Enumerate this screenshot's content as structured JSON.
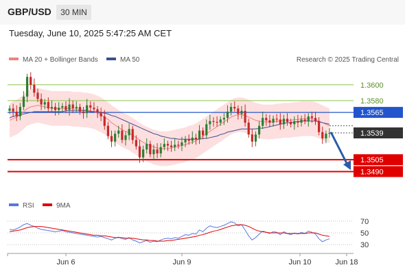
{
  "header": {
    "symbol": "GBP/USD",
    "interval": "30 MIN"
  },
  "datetime": "Tuesday, June 10, 2025 5:47:25 AM CET",
  "legend": {
    "bb_label": "MA 20 + Bollinger Bands",
    "ma50_label": "MA 50",
    "credit": "Research © 2025 Trading Central",
    "rsi_label": "RSI",
    "ma9_label": "9MA"
  },
  "colors": {
    "bb_band": "#fdd9d9",
    "ma20": "#f08080",
    "ma50": "#3a4f91",
    "resistance": "#8bc34a",
    "pivot": "#2255cc",
    "support": "#e00000",
    "up": "#2e7d32",
    "down": "#c62828",
    "rsi": "#5577dd",
    "arrow": "#2a5ba8"
  },
  "chart_data": [
    {
      "type": "candlestick",
      "title": "GBP/USD",
      "ylim": [
        1.346,
        1.3625
      ],
      "x_ticks": [
        "Jun 6",
        "Jun 9",
        "Jun 10",
        "Jun 18"
      ],
      "last_price": 1.3539,
      "levels": [
        {
          "value": 1.36,
          "label": "1.3600",
          "kind": "resistance"
        },
        {
          "value": 1.358,
          "label": "1.3580",
          "kind": "resistance"
        },
        {
          "value": 1.3565,
          "label": "1.3565",
          "kind": "pivot"
        },
        {
          "value": 1.3539,
          "label": "1.3539",
          "kind": "last"
        },
        {
          "value": 1.3505,
          "label": "1.3505",
          "kind": "support"
        },
        {
          "value": 1.349,
          "label": "1.3490",
          "kind": "support"
        }
      ],
      "forecast": {
        "from": 1.354,
        "to": 1.3492,
        "direction": "down"
      },
      "close_series": [
        1.357,
        1.3566,
        1.356,
        1.3572,
        1.3585,
        1.361,
        1.36,
        1.359,
        1.3582,
        1.3575,
        1.3578,
        1.357,
        1.3572,
        1.3568,
        1.3571,
        1.3573,
        1.3568,
        1.3575,
        1.357,
        1.3572,
        1.3566,
        1.3564,
        1.3574,
        1.3571,
        1.3569,
        1.3565,
        1.356,
        1.3548,
        1.3535,
        1.3528,
        1.3538,
        1.3542,
        1.353,
        1.3536,
        1.3544,
        1.353,
        1.3522,
        1.3508,
        1.3518,
        1.3525,
        1.3512,
        1.3518,
        1.3513,
        1.3521,
        1.3525,
        1.3523,
        1.3521,
        1.3524,
        1.3523,
        1.3527,
        1.3531,
        1.3529,
        1.3533,
        1.3531,
        1.3542,
        1.3536,
        1.355,
        1.3554,
        1.3553,
        1.3552,
        1.3556,
        1.3558,
        1.3566,
        1.3572,
        1.357,
        1.3563,
        1.3567,
        1.3552,
        1.3537,
        1.3528,
        1.3537,
        1.3548,
        1.3558,
        1.3555,
        1.3552,
        1.3557,
        1.3556,
        1.355,
        1.3557,
        1.3553,
        1.355,
        1.3554,
        1.3552,
        1.3556,
        1.3554,
        1.356,
        1.3558,
        1.3554,
        1.354,
        1.3532,
        1.3538,
        1.3539
      ],
      "ma20_series": [
        1.3555,
        1.3557,
        1.3559,
        1.3562,
        1.3566,
        1.357,
        1.3572,
        1.3573,
        1.3574,
        1.3573,
        1.3572,
        1.3571,
        1.357,
        1.357,
        1.357,
        1.357,
        1.357,
        1.357,
        1.3569,
        1.3569,
        1.3569,
        1.3568,
        1.3568,
        1.3567,
        1.3566,
        1.3564,
        1.3562,
        1.3559,
        1.3556,
        1.3552,
        1.3549,
        1.3546,
        1.3543,
        1.3541,
        1.3539,
        1.3536,
        1.3533,
        1.353,
        1.3527,
        1.3525,
        1.3523,
        1.3521,
        1.352,
        1.3519,
        1.3519,
        1.3519,
        1.352,
        1.3521,
        1.3522,
        1.3523,
        1.3524,
        1.3526,
        1.3527,
        1.3529,
        1.3532,
        1.3535,
        1.3538,
        1.3541,
        1.3544,
        1.3547,
        1.355,
        1.3553,
        1.3556,
        1.3559,
        1.3561,
        1.3562,
        1.3562,
        1.3561,
        1.3559,
        1.3557,
        1.3555,
        1.3554,
        1.3553,
        1.3553,
        1.3553,
        1.3553,
        1.3554,
        1.3554,
        1.3555,
        1.3555,
        1.3555,
        1.3556,
        1.3556,
        1.3557,
        1.3557,
        1.3557,
        1.3557,
        1.3556,
        1.3554,
        1.3552,
        1.355,
        1.3548
      ],
      "ma50_series": [
        1.3558,
        1.356,
        1.3561,
        1.3562,
        1.3563,
        1.3564,
        1.3565,
        1.3566,
        1.3566,
        1.3566,
        1.3566,
        1.3566,
        1.3566,
        1.3566,
        1.3566,
        1.3566,
        1.3567,
        1.3567,
        1.3567,
        1.3567,
        1.3567,
        1.3567,
        1.3567,
        1.3566,
        1.3566,
        1.3566,
        1.3565,
        1.3564,
        1.3563,
        1.3561,
        1.356,
        1.3558,
        1.3556,
        1.3554,
        1.3552,
        1.355,
        1.3548,
        1.3546,
        1.3544,
        1.3542,
        1.354,
        1.3538,
        1.3537,
        1.3535,
        1.3534,
        1.3533,
        1.3532,
        1.3532,
        1.3531,
        1.3531,
        1.3531,
        1.3531,
        1.3531,
        1.3531,
        1.3531,
        1.3532,
        1.3532,
        1.3533,
        1.3534,
        1.3535,
        1.3537,
        1.3538,
        1.354,
        1.3541,
        1.3542,
        1.3543,
        1.3544,
        1.3544,
        1.3544,
        1.3544,
        1.3544,
        1.3545,
        1.3545,
        1.3546,
        1.3547,
        1.3548,
        1.3549,
        1.355,
        1.3551,
        1.3552,
        1.3552,
        1.3553,
        1.3553,
        1.3554,
        1.3554,
        1.3554,
        1.3554,
        1.3554,
        1.3553,
        1.3552,
        1.3551,
        1.355
      ]
    },
    {
      "type": "line",
      "ylim": [
        22,
        78
      ],
      "y_ticks": [
        70,
        50,
        30
      ],
      "series": [
        {
          "name": "RSI",
          "values": [
            56,
            55,
            57,
            60,
            64,
            66,
            63,
            61,
            58,
            56,
            55,
            54,
            53,
            52,
            53,
            54,
            52,
            51,
            50,
            49,
            48,
            47,
            46,
            45,
            44,
            43,
            44,
            42,
            40,
            38,
            41,
            43,
            40,
            39,
            42,
            38,
            36,
            33,
            35,
            37,
            34,
            36,
            35,
            38,
            40,
            41,
            40,
            42,
            41,
            44,
            47,
            46,
            49,
            48,
            55,
            52,
            58,
            62,
            60,
            59,
            61,
            63,
            66,
            69,
            67,
            62,
            64,
            55,
            45,
            38,
            42,
            48,
            53,
            51,
            49,
            52,
            51,
            47,
            52,
            49,
            47,
            50,
            48,
            51,
            49,
            53,
            51,
            48,
            40,
            35,
            38,
            40
          ]
        },
        {
          "name": "9MA",
          "values": [
            52,
            53,
            54,
            55,
            57,
            59,
            60,
            61,
            61,
            61,
            60,
            59,
            58,
            57,
            56,
            55,
            54,
            53,
            52,
            51,
            50,
            49,
            48,
            47,
            46,
            46,
            45,
            45,
            44,
            43,
            42,
            42,
            42,
            41,
            41,
            41,
            40,
            39,
            38,
            38,
            37,
            37,
            36,
            36,
            36,
            37,
            37,
            38,
            39,
            40,
            41,
            42,
            43,
            44,
            46,
            47,
            49,
            51,
            53,
            54,
            56,
            58,
            60,
            62,
            63,
            64,
            64,
            63,
            61,
            58,
            55,
            53,
            52,
            51,
            50,
            50,
            50,
            50,
            50,
            49,
            49,
            49,
            49,
            49,
            49,
            50,
            50,
            50,
            48,
            46,
            45,
            44
          ]
        }
      ]
    }
  ]
}
